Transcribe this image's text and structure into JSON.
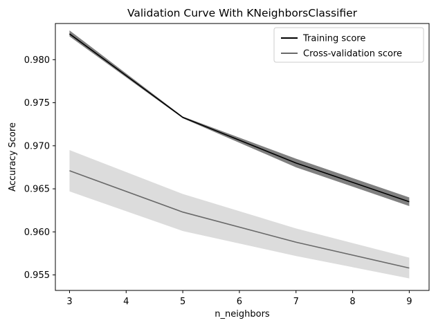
{
  "chart_data": {
    "type": "line",
    "title": "Validation Curve With KNeighborsClassifier",
    "xlabel": "n_neighbors",
    "ylabel": "Accuracy Score",
    "x": [
      3,
      5,
      7,
      9
    ],
    "xlim": [
      2.75,
      9.35
    ],
    "ylim": [
      0.9532,
      0.9842
    ],
    "xticks": [
      3,
      4,
      5,
      6,
      7,
      8,
      9
    ],
    "yticks": [
      0.955,
      0.96,
      0.965,
      0.97,
      0.975,
      0.98
    ],
    "ytick_labels": [
      "0.955",
      "0.960",
      "0.965",
      "0.970",
      "0.975",
      "0.980"
    ],
    "grid": false,
    "legend_position": "top-right",
    "series": [
      {
        "name": "Training score",
        "values": [
          0.983,
          0.9733,
          0.968,
          0.9635
        ],
        "band_lower": [
          0.9827,
          0.9732,
          0.9675,
          0.963
        ],
        "band_upper": [
          0.9834,
          0.9734,
          0.9685,
          0.964
        ],
        "line_color": "#000000",
        "band_color": "#808080"
      },
      {
        "name": "Cross-validation score",
        "values": [
          0.9671,
          0.9623,
          0.9588,
          0.9558
        ],
        "band_lower": [
          0.9647,
          0.9601,
          0.9572,
          0.9546
        ],
        "band_upper": [
          0.9695,
          0.9644,
          0.9604,
          0.957
        ],
        "line_color": "#696969",
        "band_color": "#dcdcdc"
      }
    ]
  }
}
